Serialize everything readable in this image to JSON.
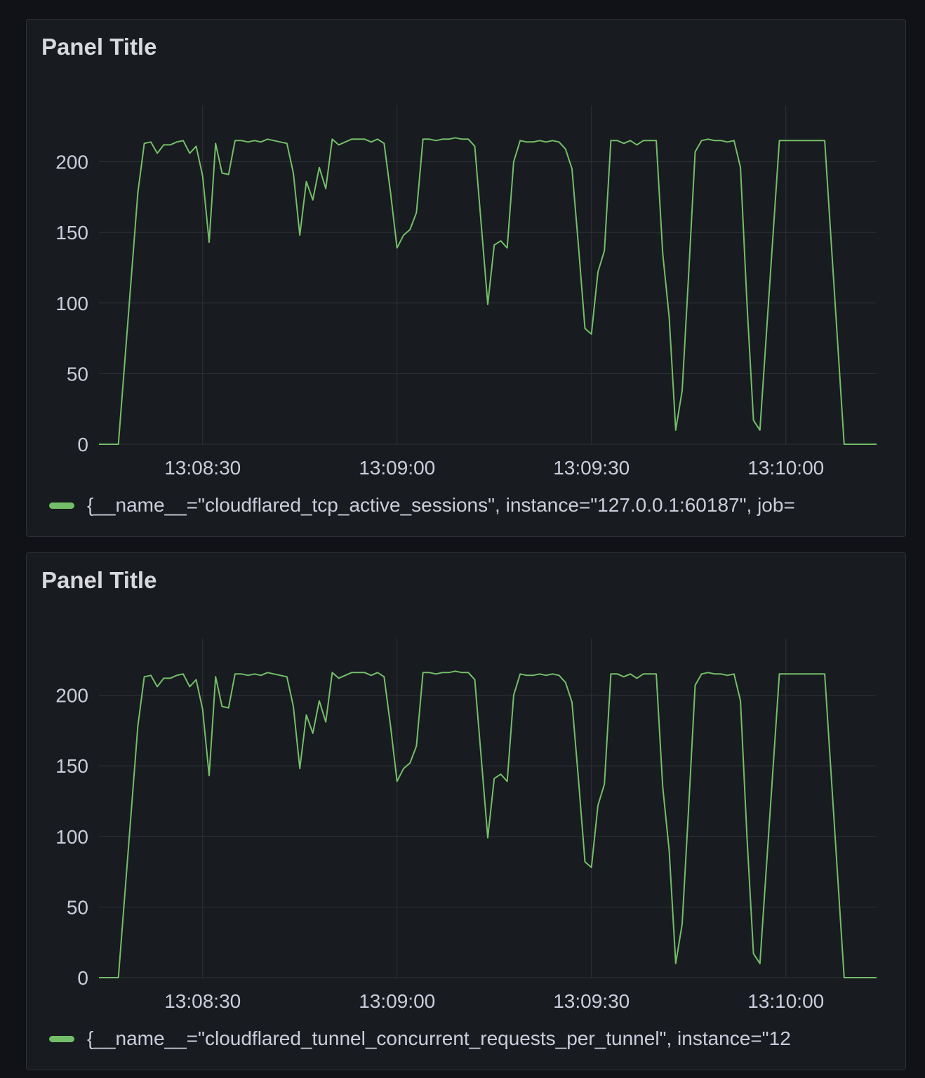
{
  "theme": {
    "page_bg": "#111217",
    "panel_bg": "#181b1f",
    "series_color": "#73bf69",
    "grid_color": "#2f3237"
  },
  "panels": [
    {
      "title": "Panel Title",
      "legend": {
        "icon": "legend-line-swatch",
        "text": "{__name__=\"cloudflared_tcp_active_sessions\", instance=\"127.0.0.1:60187\", job="
      }
    },
    {
      "title": "Panel Title",
      "legend": {
        "icon": "legend-line-swatch",
        "text": "{__name__=\"cloudflared_tunnel_concurrent_requests_per_tunnel\", instance=\"12"
      }
    }
  ],
  "chart_data": [
    {
      "type": "line",
      "title": "Panel Title",
      "xlabel": "",
      "ylabel": "",
      "xlim": [
        "13:08:14",
        "13:10:14"
      ],
      "ylim": [
        0,
        240
      ],
      "grid": true,
      "legend_placement": "bottom",
      "x_ticks": [
        "13:08:30",
        "13:09:00",
        "13:09:30",
        "13:10:00"
      ],
      "y_ticks": [
        0,
        50,
        100,
        150,
        200
      ],
      "series": [
        {
          "name": "{__name__=\"cloudflared_tcp_active_sessions\", instance=\"127.0.0.1:60187\", job=",
          "color": "#73bf69",
          "points": [
            [
              "13:08:14",
              0
            ],
            [
              "13:08:17",
              0
            ],
            [
              "13:08:20",
              178
            ],
            [
              "13:08:21",
              213
            ],
            [
              "13:08:22",
              214
            ],
            [
              "13:08:23",
              206
            ],
            [
              "13:08:24",
              212
            ],
            [
              "13:08:25",
              212
            ],
            [
              "13:08:26",
              214
            ],
            [
              "13:08:27",
              215
            ],
            [
              "13:08:28",
              206
            ],
            [
              "13:08:29",
              211
            ],
            [
              "13:08:30",
              190
            ],
            [
              "13:08:31",
              143
            ],
            [
              "13:08:32",
              213
            ],
            [
              "13:08:33",
              192
            ],
            [
              "13:08:34",
              191
            ],
            [
              "13:08:35",
              215
            ],
            [
              "13:08:36",
              215
            ],
            [
              "13:08:37",
              214
            ],
            [
              "13:08:38",
              215
            ],
            [
              "13:08:39",
              214
            ],
            [
              "13:08:40",
              216
            ],
            [
              "13:08:41",
              215
            ],
            [
              "13:08:42",
              214
            ],
            [
              "13:08:43",
              213
            ],
            [
              "13:08:44",
              192
            ],
            [
              "13:08:45",
              148
            ],
            [
              "13:08:46",
              186
            ],
            [
              "13:08:47",
              173
            ],
            [
              "13:08:48",
              196
            ],
            [
              "13:08:49",
              181
            ],
            [
              "13:08:50",
              216
            ],
            [
              "13:08:51",
              212
            ],
            [
              "13:08:52",
              214
            ],
            [
              "13:08:53",
              216
            ],
            [
              "13:08:54",
              216
            ],
            [
              "13:08:55",
              216
            ],
            [
              "13:08:56",
              214
            ],
            [
              "13:08:57",
              216
            ],
            [
              "13:08:58",
              213
            ],
            [
              "13:08:59",
              178
            ],
            [
              "13:09:00",
              139
            ],
            [
              "13:09:01",
              148
            ],
            [
              "13:09:02",
              152
            ],
            [
              "13:09:03",
              164
            ],
            [
              "13:09:04",
              216
            ],
            [
              "13:09:05",
              216
            ],
            [
              "13:09:06",
              215
            ],
            [
              "13:09:07",
              216
            ],
            [
              "13:09:08",
              216
            ],
            [
              "13:09:09",
              217
            ],
            [
              "13:09:10",
              216
            ],
            [
              "13:09:11",
              216
            ],
            [
              "13:09:12",
              211
            ],
            [
              "13:09:13",
              155
            ],
            [
              "13:09:14",
              99
            ],
            [
              "13:09:15",
              141
            ],
            [
              "13:09:16",
              144
            ],
            [
              "13:09:17",
              139
            ],
            [
              "13:09:18",
              200
            ],
            [
              "13:09:19",
              215
            ],
            [
              "13:09:20",
              214
            ],
            [
              "13:09:21",
              214
            ],
            [
              "13:09:22",
              215
            ],
            [
              "13:09:23",
              214
            ],
            [
              "13:09:24",
              215
            ],
            [
              "13:09:25",
              214
            ],
            [
              "13:09:26",
              209
            ],
            [
              "13:09:27",
              195
            ],
            [
              "13:09:28",
              140
            ],
            [
              "13:09:29",
              82
            ],
            [
              "13:09:30",
              78
            ],
            [
              "13:09:31",
              122
            ],
            [
              "13:09:32",
              137
            ],
            [
              "13:09:33",
              215
            ],
            [
              "13:09:34",
              215
            ],
            [
              "13:09:35",
              213
            ],
            [
              "13:09:36",
              215
            ],
            [
              "13:09:37",
              212
            ],
            [
              "13:09:38",
              215
            ],
            [
              "13:09:39",
              215
            ],
            [
              "13:09:40",
              215
            ],
            [
              "13:09:41",
              135
            ],
            [
              "13:09:42",
              90
            ],
            [
              "13:09:43",
              10
            ],
            [
              "13:09:44",
              38
            ],
            [
              "13:09:45",
              120
            ],
            [
              "13:09:46",
              207
            ],
            [
              "13:09:47",
              215
            ],
            [
              "13:09:48",
              216
            ],
            [
              "13:09:49",
              215
            ],
            [
              "13:09:50",
              215
            ],
            [
              "13:09:51",
              214
            ],
            [
              "13:09:52",
              215
            ],
            [
              "13:09:53",
              196
            ],
            [
              "13:09:54",
              100
            ],
            [
              "13:09:55",
              17
            ],
            [
              "13:09:56",
              10
            ],
            [
              "13:09:59",
              215
            ],
            [
              "13:10:06",
              215
            ],
            [
              "13:10:09",
              0
            ],
            [
              "13:10:14",
              0
            ]
          ]
        }
      ]
    },
    {
      "type": "line",
      "title": "Panel Title",
      "xlabel": "",
      "ylabel": "",
      "xlim": [
        "13:08:14",
        "13:10:14"
      ],
      "ylim": [
        0,
        240
      ],
      "grid": true,
      "legend_placement": "bottom",
      "x_ticks": [
        "13:08:30",
        "13:09:00",
        "13:09:30",
        "13:10:00"
      ],
      "y_ticks": [
        0,
        50,
        100,
        150,
        200
      ],
      "series": [
        {
          "name": "{__name__=\"cloudflared_tunnel_concurrent_requests_per_tunnel\", instance=\"12",
          "color": "#73bf69",
          "points": [
            [
              "13:08:14",
              0
            ],
            [
              "13:08:17",
              0
            ],
            [
              "13:08:20",
              178
            ],
            [
              "13:08:21",
              213
            ],
            [
              "13:08:22",
              214
            ],
            [
              "13:08:23",
              206
            ],
            [
              "13:08:24",
              212
            ],
            [
              "13:08:25",
              212
            ],
            [
              "13:08:26",
              214
            ],
            [
              "13:08:27",
              215
            ],
            [
              "13:08:28",
              206
            ],
            [
              "13:08:29",
              211
            ],
            [
              "13:08:30",
              190
            ],
            [
              "13:08:31",
              143
            ],
            [
              "13:08:32",
              213
            ],
            [
              "13:08:33",
              192
            ],
            [
              "13:08:34",
              191
            ],
            [
              "13:08:35",
              215
            ],
            [
              "13:08:36",
              215
            ],
            [
              "13:08:37",
              214
            ],
            [
              "13:08:38",
              215
            ],
            [
              "13:08:39",
              214
            ],
            [
              "13:08:40",
              216
            ],
            [
              "13:08:41",
              215
            ],
            [
              "13:08:42",
              214
            ],
            [
              "13:08:43",
              213
            ],
            [
              "13:08:44",
              192
            ],
            [
              "13:08:45",
              148
            ],
            [
              "13:08:46",
              186
            ],
            [
              "13:08:47",
              173
            ],
            [
              "13:08:48",
              196
            ],
            [
              "13:08:49",
              181
            ],
            [
              "13:08:50",
              216
            ],
            [
              "13:08:51",
              212
            ],
            [
              "13:08:52",
              214
            ],
            [
              "13:08:53",
              216
            ],
            [
              "13:08:54",
              216
            ],
            [
              "13:08:55",
              216
            ],
            [
              "13:08:56",
              214
            ],
            [
              "13:08:57",
              216
            ],
            [
              "13:08:58",
              213
            ],
            [
              "13:08:59",
              178
            ],
            [
              "13:09:00",
              139
            ],
            [
              "13:09:01",
              148
            ],
            [
              "13:09:02",
              152
            ],
            [
              "13:09:03",
              164
            ],
            [
              "13:09:04",
              216
            ],
            [
              "13:09:05",
              216
            ],
            [
              "13:09:06",
              215
            ],
            [
              "13:09:07",
              216
            ],
            [
              "13:09:08",
              216
            ],
            [
              "13:09:09",
              217
            ],
            [
              "13:09:10",
              216
            ],
            [
              "13:09:11",
              216
            ],
            [
              "13:09:12",
              211
            ],
            [
              "13:09:13",
              155
            ],
            [
              "13:09:14",
              99
            ],
            [
              "13:09:15",
              141
            ],
            [
              "13:09:16",
              144
            ],
            [
              "13:09:17",
              139
            ],
            [
              "13:09:18",
              200
            ],
            [
              "13:09:19",
              215
            ],
            [
              "13:09:20",
              214
            ],
            [
              "13:09:21",
              214
            ],
            [
              "13:09:22",
              215
            ],
            [
              "13:09:23",
              214
            ],
            [
              "13:09:24",
              215
            ],
            [
              "13:09:25",
              214
            ],
            [
              "13:09:26",
              209
            ],
            [
              "13:09:27",
              195
            ],
            [
              "13:09:28",
              140
            ],
            [
              "13:09:29",
              82
            ],
            [
              "13:09:30",
              78
            ],
            [
              "13:09:31",
              122
            ],
            [
              "13:09:32",
              137
            ],
            [
              "13:09:33",
              215
            ],
            [
              "13:09:34",
              215
            ],
            [
              "13:09:35",
              213
            ],
            [
              "13:09:36",
              215
            ],
            [
              "13:09:37",
              212
            ],
            [
              "13:09:38",
              215
            ],
            [
              "13:09:39",
              215
            ],
            [
              "13:09:40",
              215
            ],
            [
              "13:09:41",
              135
            ],
            [
              "13:09:42",
              90
            ],
            [
              "13:09:43",
              10
            ],
            [
              "13:09:44",
              38
            ],
            [
              "13:09:45",
              120
            ],
            [
              "13:09:46",
              207
            ],
            [
              "13:09:47",
              215
            ],
            [
              "13:09:48",
              216
            ],
            [
              "13:09:49",
              215
            ],
            [
              "13:09:50",
              215
            ],
            [
              "13:09:51",
              214
            ],
            [
              "13:09:52",
              215
            ],
            [
              "13:09:53",
              196
            ],
            [
              "13:09:54",
              100
            ],
            [
              "13:09:55",
              17
            ],
            [
              "13:09:56",
              10
            ],
            [
              "13:09:59",
              215
            ],
            [
              "13:10:06",
              215
            ],
            [
              "13:10:09",
              0
            ],
            [
              "13:10:14",
              0
            ]
          ]
        }
      ]
    }
  ]
}
